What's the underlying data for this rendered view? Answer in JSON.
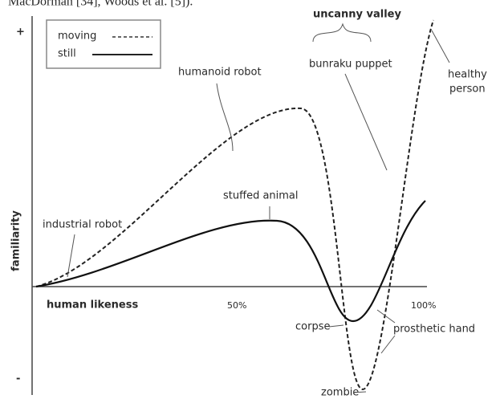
{
  "caption_fragment": "MacDorman [34], Woods et al. [5]).",
  "axes": {
    "y_plus": "+",
    "y_minus": "-",
    "y_label": "familiarity",
    "x_label": "human likeness",
    "x_mid": "50%",
    "x_end": "100%"
  },
  "legend": {
    "moving": "moving",
    "still": "still"
  },
  "annotations": {
    "uncanny_valley": "uncanny valley",
    "bunraku_puppet": "bunraku puppet",
    "healthy_person": [
      "healthy",
      "person"
    ],
    "humanoid_robot": "humanoid robot",
    "stuffed_animal": "stuffed animal",
    "industrial_robot": "industrial robot",
    "corpse": "corpse",
    "prosthetic_hand": "prosthetic hand",
    "zombie": "zombie"
  }
}
